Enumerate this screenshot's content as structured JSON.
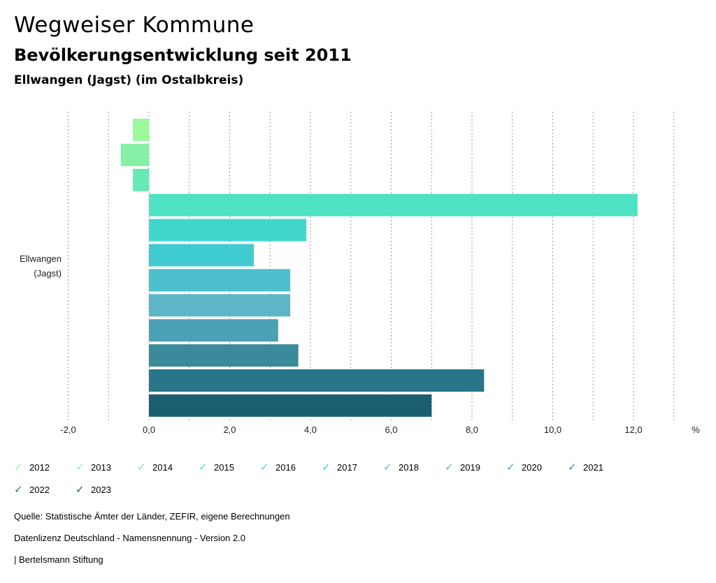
{
  "header": {
    "title": "Wegweiser Kommune",
    "subtitle": "Bevölkerungsentwicklung seit 2011",
    "location": "Ellwangen (Jagst) (im Ostalbkreis)"
  },
  "chart_data": {
    "type": "bar",
    "orientation": "horizontal",
    "category": "Ellwangen (Jagst)",
    "category_lines": [
      "Ellwangen",
      "(Jagst)"
    ],
    "series": [
      {
        "name": "2012",
        "value": -0.4,
        "color": "#9df79b"
      },
      {
        "name": "2013",
        "value": -0.7,
        "color": "#86f1a6"
      },
      {
        "name": "2014",
        "value": -0.4,
        "color": "#67e8b4"
      },
      {
        "name": "2015",
        "value": 12.1,
        "color": "#4fe2c2"
      },
      {
        "name": "2016",
        "value": 3.9,
        "color": "#41d6cc"
      },
      {
        "name": "2017",
        "value": 2.6,
        "color": "#40cbd0"
      },
      {
        "name": "2018",
        "value": 3.5,
        "color": "#4cbfcc"
      },
      {
        "name": "2019",
        "value": 3.5,
        "color": "#5db5c8"
      },
      {
        "name": "2020",
        "value": 3.2,
        "color": "#4aa0b4"
      },
      {
        "name": "2021",
        "value": 3.7,
        "color": "#3a8a9c"
      },
      {
        "name": "2022",
        "value": 8.3,
        "color": "#29768a"
      },
      {
        "name": "2023",
        "value": 7.0,
        "color": "#1a5e70"
      }
    ],
    "xlim": [
      -2.0,
      13.0
    ],
    "ticks": [
      -2,
      -1,
      0,
      1,
      2,
      3,
      4,
      5,
      6,
      7,
      8,
      9,
      10,
      11,
      12,
      13
    ],
    "tick_labels": [
      "-2,0",
      "",
      "0,0",
      "",
      "2,0",
      "",
      "4,0",
      "",
      "6,0",
      "",
      "8,0",
      "",
      "10,0",
      "",
      "12,0",
      ""
    ],
    "unit": "%",
    "grid": true
  },
  "footer": {
    "source": "Quelle: Statistische Ämter der Länder, ZEFIR, eigene Berechnungen",
    "license": "Datenlizenz Deutschland - Namensnennung - Version 2.0",
    "credit": "| Bertelsmann Stiftung"
  }
}
